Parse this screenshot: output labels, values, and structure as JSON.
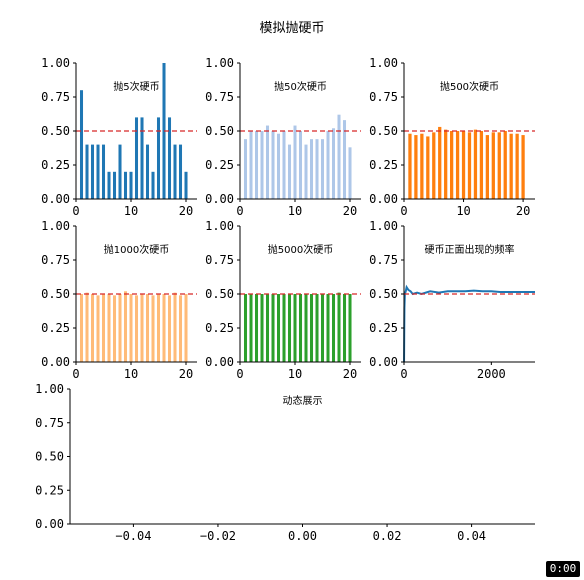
{
  "figure": {
    "title": "模拟抛硬币",
    "timer": "0:00"
  },
  "chart_data": [
    {
      "type": "bar",
      "title": "抛5次硬币",
      "color": "#1f77b4",
      "x": [
        1,
        2,
        3,
        4,
        5,
        6,
        7,
        8,
        9,
        10,
        11,
        12,
        13,
        14,
        15,
        16,
        17,
        18,
        19,
        20
      ],
      "values": [
        0.8,
        0.4,
        0.4,
        0.4,
        0.4,
        0.2,
        0.2,
        0.4,
        0.2,
        0.2,
        0.6,
        0.6,
        0.4,
        0.2,
        0.6,
        1.0,
        0.6,
        0.4,
        0.4,
        0.2
      ],
      "xlim": [
        0,
        22
      ],
      "ylim": [
        0,
        1
      ],
      "xticks": [
        0,
        10,
        20
      ],
      "yticks": [
        "0.00",
        "0.25",
        "0.50",
        "0.75",
        "1.00"
      ],
      "ref_line": 0.5
    },
    {
      "type": "bar",
      "title": "抛50次硬币",
      "color": "#aec7e8",
      "x": [
        1,
        2,
        3,
        4,
        5,
        6,
        7,
        8,
        9,
        10,
        11,
        12,
        13,
        14,
        15,
        16,
        17,
        18,
        19,
        20
      ],
      "values": [
        0.44,
        0.5,
        0.5,
        0.5,
        0.54,
        0.5,
        0.48,
        0.5,
        0.4,
        0.54,
        0.5,
        0.4,
        0.44,
        0.44,
        0.44,
        0.5,
        0.52,
        0.62,
        0.58,
        0.38
      ],
      "xlim": [
        0,
        22
      ],
      "ylim": [
        0,
        1
      ],
      "xticks": [
        0,
        10,
        20
      ],
      "yticks": [
        "0.00",
        "0.25",
        "0.50",
        "0.75",
        "1.00"
      ],
      "ref_line": 0.5
    },
    {
      "type": "bar",
      "title": "抛500次硬币",
      "color": "#ff7f0e",
      "x": [
        1,
        2,
        3,
        4,
        5,
        6,
        7,
        8,
        9,
        10,
        11,
        12,
        13,
        14,
        15,
        16,
        17,
        18,
        19,
        20
      ],
      "values": [
        0.48,
        0.47,
        0.48,
        0.46,
        0.49,
        0.53,
        0.51,
        0.5,
        0.5,
        0.5,
        0.49,
        0.51,
        0.5,
        0.47,
        0.49,
        0.49,
        0.5,
        0.48,
        0.48,
        0.47
      ],
      "xlim": [
        0,
        22
      ],
      "ylim": [
        0,
        1
      ],
      "xticks": [
        0,
        10,
        20
      ],
      "yticks": [
        "0.00",
        "0.25",
        "0.50",
        "0.75",
        "1.00"
      ],
      "ref_line": 0.5
    },
    {
      "type": "bar",
      "title": "抛1000次硬币",
      "color": "#ffbb78",
      "x": [
        1,
        2,
        3,
        4,
        5,
        6,
        7,
        8,
        9,
        10,
        11,
        12,
        13,
        14,
        15,
        16,
        17,
        18,
        19,
        20
      ],
      "values": [
        0.5,
        0.51,
        0.5,
        0.49,
        0.5,
        0.5,
        0.49,
        0.5,
        0.52,
        0.5,
        0.49,
        0.5,
        0.5,
        0.49,
        0.5,
        0.5,
        0.49,
        0.51,
        0.49,
        0.5
      ],
      "xlim": [
        0,
        22
      ],
      "ylim": [
        0,
        1
      ],
      "xticks": [
        0,
        10,
        20
      ],
      "yticks": [
        "0.00",
        "0.25",
        "0.50",
        "0.75",
        "1.00"
      ],
      "ref_line": 0.5
    },
    {
      "type": "bar",
      "title": "抛5000次硬币",
      "color": "#2ca02c",
      "x": [
        1,
        2,
        3,
        4,
        5,
        6,
        7,
        8,
        9,
        10,
        11,
        12,
        13,
        14,
        15,
        16,
        17,
        18,
        19,
        20
      ],
      "values": [
        0.5,
        0.5,
        0.5,
        0.5,
        0.5,
        0.5,
        0.5,
        0.5,
        0.5,
        0.5,
        0.5,
        0.5,
        0.5,
        0.5,
        0.5,
        0.5,
        0.5,
        0.51,
        0.5,
        0.5
      ],
      "xlim": [
        0,
        22
      ],
      "ylim": [
        0,
        1
      ],
      "xticks": [
        0,
        10,
        20
      ],
      "yticks": [
        "0.00",
        "0.25",
        "0.50",
        "0.75",
        "1.00"
      ],
      "ref_line": 0.5
    },
    {
      "type": "line",
      "title": "硬币正面出现的频率",
      "color": "#1f77b4",
      "x": [
        1,
        5,
        10,
        20,
        40,
        60,
        100,
        150,
        200,
        300,
        400,
        500,
        600,
        800,
        1000,
        1200,
        1400,
        1600,
        1800,
        2000,
        2200,
        2400,
        2600,
        2800,
        3000
      ],
      "values": [
        0.0,
        0.2,
        0.4,
        0.5,
        0.52,
        0.55,
        0.53,
        0.52,
        0.5,
        0.51,
        0.5,
        0.51,
        0.52,
        0.51,
        0.52,
        0.52,
        0.52,
        0.525,
        0.52,
        0.52,
        0.515,
        0.515,
        0.515,
        0.515,
        0.515
      ],
      "xlim": [
        0,
        3000
      ],
      "ylim": [
        0,
        1
      ],
      "xticks": [
        0,
        2000
      ],
      "yticks": [
        "0.00",
        "0.25",
        "0.50",
        "0.75",
        "1.00"
      ],
      "ref_line": 0.5
    },
    {
      "type": "line",
      "title": "动态展示",
      "color": "#1f77b4",
      "x": [],
      "values": [],
      "xlim": [
        -0.055,
        0.055
      ],
      "ylim": [
        0,
        1
      ],
      "xticks": [
        "−0.04",
        "−0.02",
        "0.00",
        "0.02",
        "0.04"
      ],
      "xtick_values": [
        -0.04,
        -0.02,
        0,
        0.02,
        0.04
      ],
      "yticks": [
        "0.00",
        "0.25",
        "0.50",
        "0.75",
        "1.00"
      ]
    }
  ]
}
